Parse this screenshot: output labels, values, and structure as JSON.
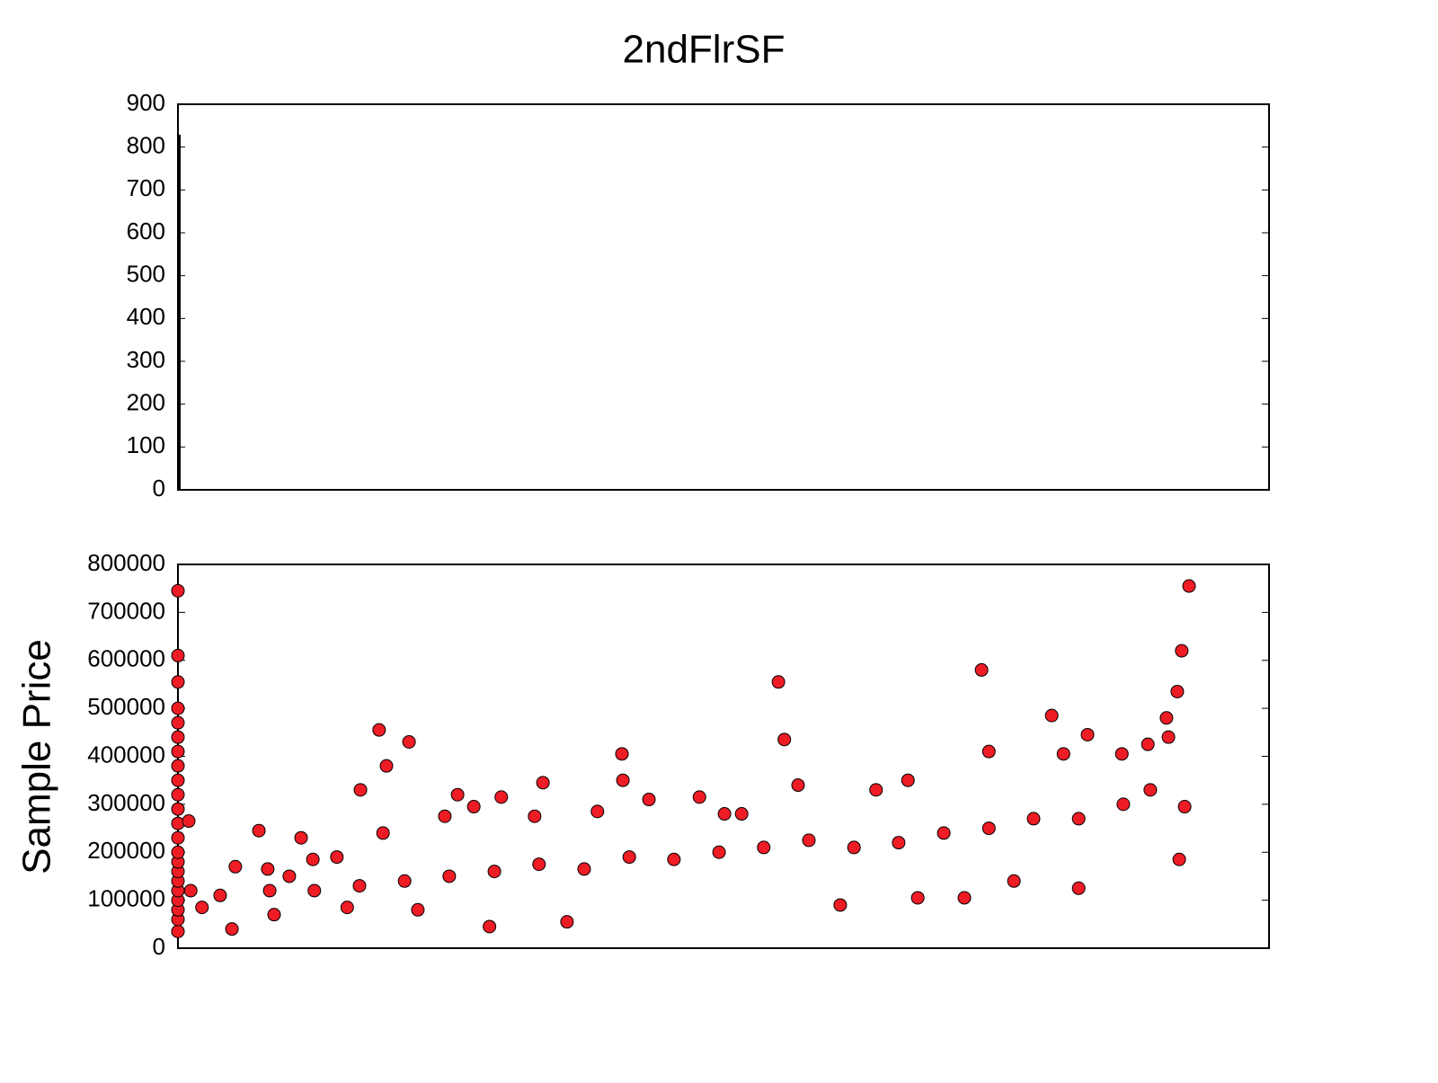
{
  "chart_data": [
    {
      "type": "bar",
      "title": "2ndFlrSF",
      "color": "#000000",
      "x": [
        0
      ],
      "values": [
        829
      ],
      "xlim": [
        0,
        2224
      ],
      "ylim": [
        0,
        900
      ],
      "yticks": [
        0,
        100,
        200,
        300,
        400,
        500,
        600,
        700,
        800,
        900
      ]
    },
    {
      "type": "scatter",
      "y_label": "Sample Price",
      "color": "#ee1c25",
      "x": [
        0,
        0,
        0,
        0,
        0,
        0,
        0,
        0,
        0,
        0,
        0,
        0,
        0,
        0,
        0,
        0,
        0,
        0,
        0,
        0,
        0,
        0,
        22,
        26,
        49,
        86,
        110,
        117,
        165,
        183,
        196,
        227,
        251,
        275,
        324,
        345,
        372,
        410,
        418,
        425,
        471,
        489,
        544,
        570,
        603,
        635,
        659,
        727,
        744,
        793,
        855,
        905,
        907,
        960,
        1063,
        1114,
        1149,
        1224,
        1236,
        1264,
        1350,
        1423,
        1488,
        1508,
        1603,
        1638,
        1653,
        1704,
        1781,
        1805,
        1854,
        1836,
        1924,
        1977,
        2019,
        2015,
        2037,
        2046,
        2061,
        2052,
        2041,
        736,
        920,
        1103,
        1286,
        1469,
        1653,
        1836,
        1927,
        370,
        553,
        187,
        1561,
        1378,
        1194,
        1011,
        828,
        645,
        462,
        278,
        1744,
        1982
      ],
      "values": [
        35000,
        60000,
        80000,
        100000,
        120000,
        140000,
        160000,
        180000,
        200000,
        230000,
        260000,
        290000,
        320000,
        350000,
        380000,
        410000,
        440000,
        470000,
        500000,
        555000,
        610000,
        745000,
        265000,
        120000,
        85000,
        110000,
        40000,
        170000,
        245000,
        165000,
        70000,
        150000,
        230000,
        185000,
        190000,
        85000,
        330000,
        455000,
        240000,
        380000,
        430000,
        80000,
        275000,
        320000,
        295000,
        45000,
        315000,
        275000,
        345000,
        55000,
        285000,
        405000,
        350000,
        310000,
        315000,
        280000,
        280000,
        555000,
        435000,
        340000,
        90000,
        330000,
        350000,
        105000,
        105000,
        580000,
        410000,
        140000,
        485000,
        405000,
        445000,
        125000,
        405000,
        425000,
        440000,
        480000,
        535000,
        620000,
        755000,
        295000,
        185000,
        175000,
        190000,
        200000,
        225000,
        220000,
        250000,
        270000,
        300000,
        130000,
        150000,
        120000,
        240000,
        210000,
        210000,
        185000,
        165000,
        160000,
        140000,
        120000,
        270000,
        330000
      ],
      "xlim": [
        0,
        2224
      ],
      "ylim": [
        0,
        800000
      ],
      "yticks": [
        0,
        100000,
        200000,
        300000,
        400000,
        500000,
        600000,
        700000,
        800000
      ]
    }
  ]
}
